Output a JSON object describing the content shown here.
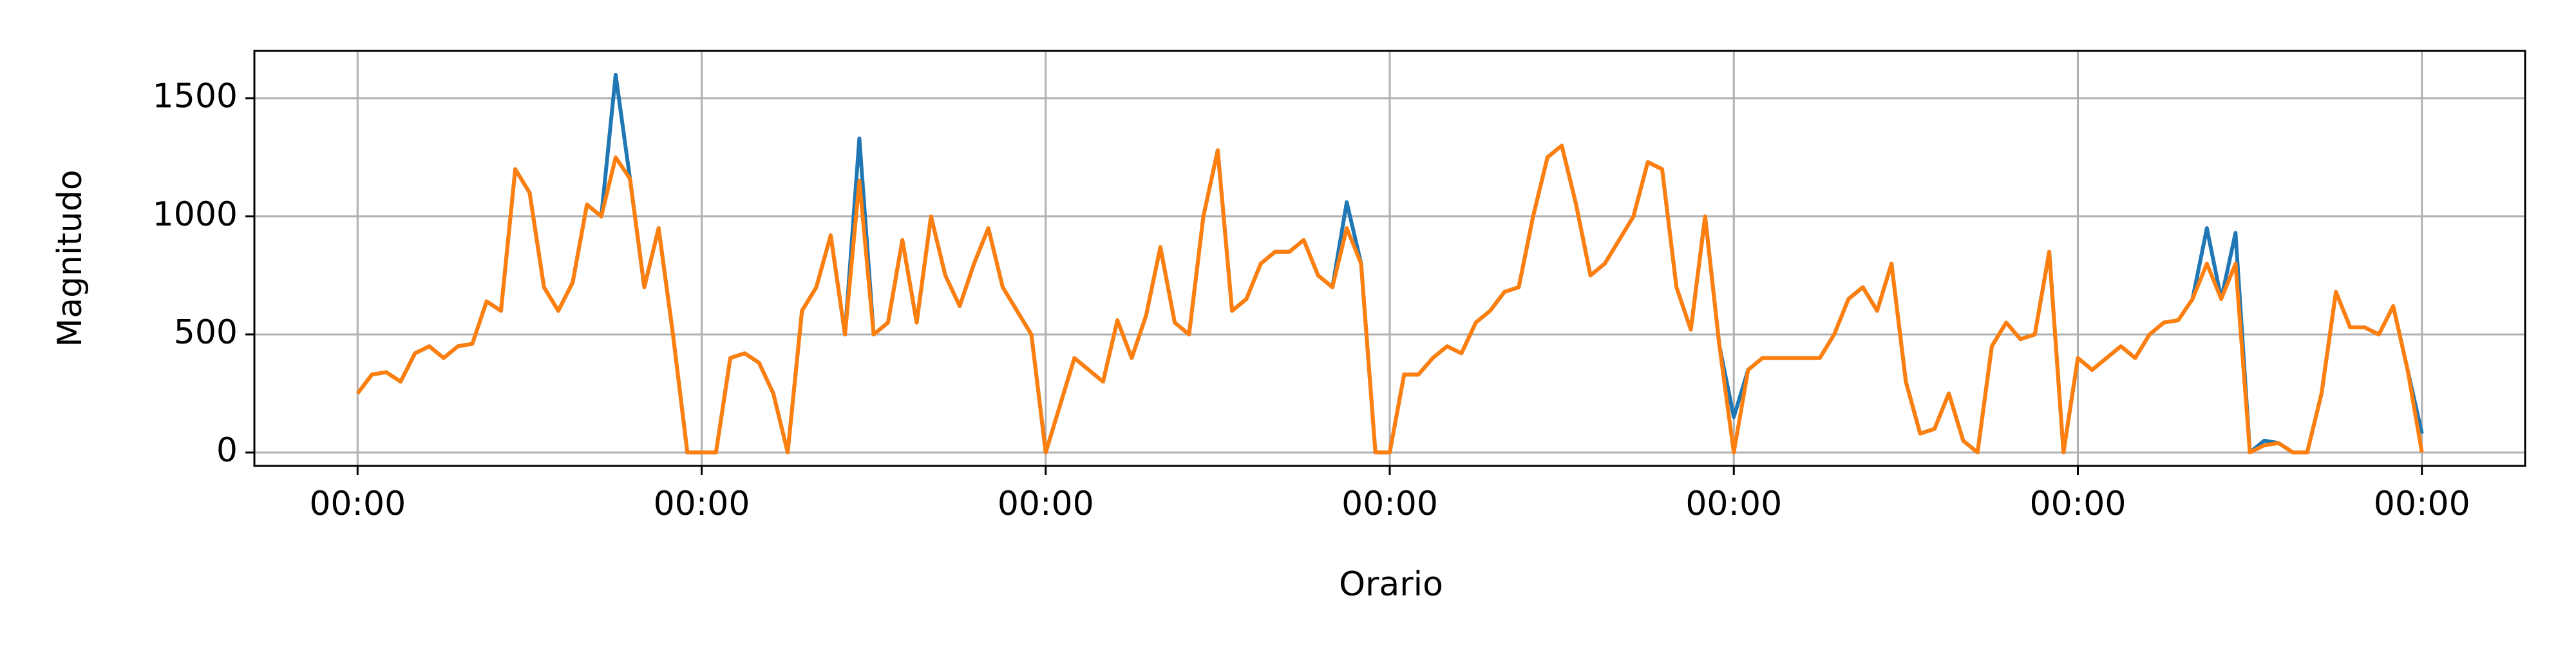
{
  "chart_data": {
    "type": "line",
    "x_label": "Orario",
    "y_label": "Magnitudo",
    "x": [
      0,
      1,
      2,
      3,
      4,
      5,
      6,
      7,
      8,
      9,
      10,
      11,
      12,
      13,
      14,
      15,
      16,
      17,
      18,
      19,
      20,
      21,
      22,
      23,
      24,
      25,
      26,
      27,
      28,
      29,
      30,
      31,
      32,
      33,
      34,
      35,
      36,
      37,
      38,
      39,
      40,
      41,
      42,
      43,
      44,
      45,
      46,
      47,
      48,
      49,
      50,
      51,
      52,
      53,
      54,
      55,
      56,
      57,
      58,
      59,
      60,
      61,
      62,
      63,
      64,
      65,
      66,
      67,
      68,
      69,
      70,
      71,
      72,
      73,
      74,
      75,
      76,
      77,
      78,
      79,
      80,
      81,
      82,
      83,
      84,
      85,
      86,
      87,
      88,
      89,
      90,
      91,
      92,
      93,
      94,
      95,
      96,
      97,
      98,
      99,
      100,
      101,
      102,
      103,
      104,
      105,
      106,
      107,
      108,
      109,
      110,
      111,
      112,
      113,
      114,
      115,
      116,
      117,
      118,
      119,
      120,
      121,
      122,
      123,
      124,
      125,
      126,
      127,
      128,
      129,
      130,
      131,
      132,
      133,
      134,
      135,
      136,
      137,
      138,
      139,
      140,
      141,
      142,
      143,
      144
    ],
    "series": [
      {
        "color": "#1f77b4",
        "values": [
          250,
          330,
          340,
          300,
          420,
          450,
          400,
          450,
          460,
          640,
          600,
          1200,
          1100,
          700,
          600,
          720,
          1050,
          1000,
          1600,
          1160,
          700,
          950,
          500,
          0,
          0,
          0,
          400,
          420,
          380,
          250,
          0,
          600,
          700,
          920,
          500,
          1330,
          500,
          550,
          900,
          550,
          1000,
          750,
          620,
          800,
          950,
          700,
          600,
          500,
          0,
          200,
          400,
          350,
          300,
          560,
          400,
          580,
          870,
          550,
          500,
          1000,
          1280,
          600,
          650,
          800,
          850,
          850,
          900,
          750,
          700,
          1060,
          800,
          0,
          0,
          330,
          330,
          400,
          450,
          420,
          550,
          600,
          680,
          700,
          1000,
          1250,
          1300,
          1050,
          750,
          800,
          900,
          1000,
          1230,
          1200,
          700,
          520,
          1000,
          450,
          150,
          350,
          400,
          400,
          400,
          400,
          400,
          500,
          650,
          700,
          600,
          800,
          300,
          80,
          100,
          250,
          50,
          0,
          450,
          550,
          480,
          500,
          850,
          0,
          400,
          350,
          400,
          450,
          400,
          500,
          550,
          560,
          650,
          950,
          650,
          930,
          0,
          50,
          40,
          0,
          0,
          250,
          680,
          530,
          530,
          500,
          620,
          350,
          80
        ]
      },
      {
        "color": "#ff7f0e",
        "values": [
          250,
          330,
          340,
          300,
          420,
          450,
          400,
          450,
          460,
          640,
          600,
          1200,
          1100,
          700,
          600,
          720,
          1050,
          1000,
          1250,
          1160,
          700,
          950,
          500,
          0,
          0,
          0,
          400,
          420,
          380,
          250,
          0,
          600,
          700,
          920,
          500,
          1150,
          500,
          550,
          900,
          550,
          1000,
          750,
          620,
          800,
          950,
          700,
          600,
          500,
          0,
          200,
          400,
          350,
          300,
          560,
          400,
          580,
          870,
          550,
          500,
          1000,
          1280,
          600,
          650,
          800,
          850,
          850,
          900,
          750,
          700,
          950,
          800,
          0,
          0,
          330,
          330,
          400,
          450,
          420,
          550,
          600,
          680,
          700,
          1000,
          1250,
          1300,
          1050,
          750,
          800,
          900,
          1000,
          1230,
          1200,
          700,
          520,
          1000,
          450,
          0,
          350,
          400,
          400,
          400,
          400,
          400,
          500,
          650,
          700,
          600,
          800,
          300,
          80,
          100,
          250,
          50,
          0,
          450,
          550,
          480,
          500,
          850,
          0,
          400,
          350,
          400,
          450,
          400,
          500,
          550,
          560,
          650,
          800,
          650,
          800,
          0,
          30,
          40,
          0,
          0,
          250,
          680,
          530,
          530,
          500,
          620,
          350,
          0
        ]
      }
    ],
    "xlim": [
      -7.2,
      151.2
    ],
    "ylim": [
      -57,
      1701
    ],
    "xticks": [
      {
        "value": 0,
        "label": "00:00"
      },
      {
        "value": 24,
        "label": "00:00"
      },
      {
        "value": 48,
        "label": "00:00"
      },
      {
        "value": 72,
        "label": "00:00"
      },
      {
        "value": 96,
        "label": "00:00"
      },
      {
        "value": 120,
        "label": "00:00"
      },
      {
        "value": 144,
        "label": "00:00"
      }
    ],
    "yticks": [
      0,
      500,
      1000,
      1500
    ],
    "grid": true
  }
}
